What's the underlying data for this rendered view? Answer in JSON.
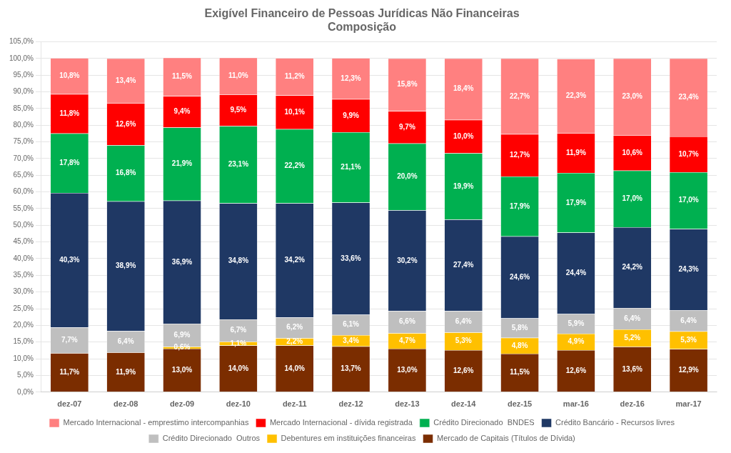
{
  "chart_data": {
    "type": "bar",
    "title": "Exigível Financeiro de Pessoas Jurídicas Não Financeiras\nComposição",
    "categories": [
      "dez-07",
      "dez-08",
      "dez-09",
      "dez-10",
      "dez-11",
      "dez-12",
      "dez-13",
      "dez-14",
      "dez-15",
      "mar-16",
      "dez-16",
      "mar-17"
    ],
    "stacked": true,
    "data_labels": true,
    "grid": true,
    "legend": "bottom",
    "ylim": [
      0,
      105
    ],
    "yticks": [
      {
        "value": 0,
        "label": "0,0%"
      },
      {
        "value": 5,
        "label": "5,0%"
      },
      {
        "value": 10,
        "label": "10,0%"
      },
      {
        "value": 15,
        "label": "15,0%"
      },
      {
        "value": 20,
        "label": "20,0%"
      },
      {
        "value": 25,
        "label": "25,0%"
      },
      {
        "value": 30,
        "label": "30,0%"
      },
      {
        "value": 35,
        "label": "35,0%"
      },
      {
        "value": 40,
        "label": "40,0%"
      },
      {
        "value": 45,
        "label": "45,0%"
      },
      {
        "value": 50,
        "label": "50,0%"
      },
      {
        "value": 55,
        "label": "55,0%"
      },
      {
        "value": 60,
        "label": "60,0%"
      },
      {
        "value": 65,
        "label": "65,0%"
      },
      {
        "value": 70,
        "label": "70,0%"
      },
      {
        "value": 75,
        "label": "75,0%"
      },
      {
        "value": 80,
        "label": "80,0%"
      },
      {
        "value": 85,
        "label": "85,0%"
      },
      {
        "value": 90,
        "label": "90,0%"
      },
      {
        "value": 95,
        "label": "95,0%"
      },
      {
        "value": 100,
        "label": "100,0%"
      },
      {
        "value": 105,
        "label": "105,0%"
      }
    ],
    "series": [
      {
        "name": "Mercado de Capitais (Títulos de Dívida)",
        "color": "#7B2D00",
        "values": [
          11.7,
          11.9,
          13.0,
          14.0,
          14.0,
          13.7,
          13.0,
          12.6,
          11.5,
          12.6,
          13.6,
          12.9
        ],
        "value_labels": [
          "11,7%",
          "11,9%",
          "13,0%",
          "14,0%",
          "14,0%",
          "13,7%",
          "13,0%",
          "12,6%",
          "11,5%",
          "12,6%",
          "13,6%",
          "12,9%"
        ]
      },
      {
        "name": "Debentures em instituições financeiras",
        "color": "#FFC000",
        "values": [
          0.0,
          0.0,
          0.6,
          1.1,
          2.2,
          3.4,
          4.7,
          5.3,
          4.8,
          4.9,
          5.2,
          5.3
        ],
        "value_labels": [
          null,
          null,
          "0,6%",
          "1,1%",
          "2,2%",
          "3,4%",
          "4,7%",
          "5,3%",
          "4,8%",
          "4,9%",
          "5,2%",
          "5,3%"
        ]
      },
      {
        "name": "Crédito Direcionado  Outros",
        "color": "#BFBFBF",
        "values": [
          7.7,
          6.4,
          6.9,
          6.7,
          6.2,
          6.1,
          6.6,
          6.4,
          5.8,
          5.9,
          6.4,
          6.4
        ],
        "value_labels": [
          "7,7%",
          "6,4%",
          "6,9%",
          "6,7%",
          "6,2%",
          "6,1%",
          "6,6%",
          "6,4%",
          "5,8%",
          "5,9%",
          "6,4%",
          "6,4%"
        ]
      },
      {
        "name": "Crédito Bancário - Recursos livres",
        "color": "#1F3864",
        "values": [
          40.3,
          38.9,
          36.9,
          34.8,
          34.2,
          33.6,
          30.2,
          27.4,
          24.6,
          24.4,
          24.2,
          24.3
        ],
        "value_labels": [
          "40,3%",
          "38,9%",
          "36,9%",
          "34,8%",
          "34,2%",
          "33,6%",
          "30,2%",
          "27,4%",
          "24,6%",
          "24,4%",
          "24,2%",
          "24,3%"
        ]
      },
      {
        "name": "Crédito Direcionado  BNDES",
        "color": "#00B050",
        "values": [
          17.8,
          16.8,
          21.9,
          23.1,
          22.2,
          21.1,
          20.0,
          19.9,
          17.9,
          17.9,
          17.0,
          17.0
        ],
        "value_labels": [
          "17,8%",
          "16,8%",
          "21,9%",
          "23,1%",
          "22,2%",
          "21,1%",
          "20,0%",
          "19,9%",
          "17,9%",
          "17,9%",
          "17,0%",
          "17,0%"
        ]
      },
      {
        "name": "Mercado Internacional - dívida registrada",
        "color": "#FF0000",
        "values": [
          11.8,
          12.6,
          9.4,
          9.5,
          10.1,
          9.9,
          9.7,
          10.0,
          12.7,
          11.9,
          10.6,
          10.7
        ],
        "value_labels": [
          "11,8%",
          "12,6%",
          "9,4%",
          "9,5%",
          "10,1%",
          "9,9%",
          "9,7%",
          "10,0%",
          "12,7%",
          "11,9%",
          "10,6%",
          "10,7%"
        ]
      },
      {
        "name": "Mercado Internacional - emprestimo intercompanhias",
        "color": "#FF8080",
        "values": [
          10.8,
          13.4,
          11.5,
          11.0,
          11.2,
          12.3,
          15.8,
          18.4,
          22.7,
          22.3,
          23.0,
          23.4
        ],
        "value_labels": [
          "10,8%",
          "13,4%",
          "11,5%",
          "11,0%",
          "11,2%",
          "12,3%",
          "15,8%",
          "18,4%",
          "22,7%",
          "22,3%",
          "23,0%",
          "23,4%"
        ]
      }
    ]
  }
}
